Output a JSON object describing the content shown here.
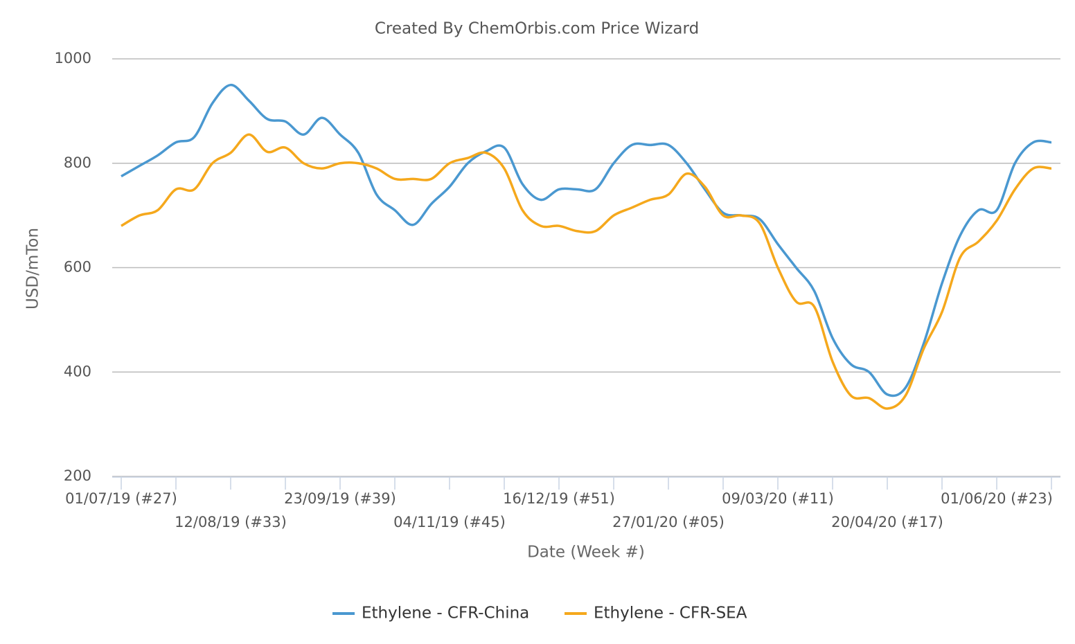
{
  "chart_data": {
    "type": "line",
    "title": "Created By ChemOrbis.com Price Wizard",
    "x_label": "Date (Week #)",
    "y_label": "USD/mTon",
    "categories": [
      "01/07/19 (#27)",
      null,
      null,
      null,
      null,
      null,
      "12/08/19 (#33)",
      null,
      null,
      null,
      null,
      null,
      "23/09/19 (#39)",
      null,
      null,
      null,
      null,
      null,
      "04/11/19 (#45)",
      null,
      null,
      null,
      null,
      null,
      "16/12/19 (#51)",
      null,
      null,
      null,
      null,
      null,
      "27/01/20 (#05)",
      null,
      null,
      null,
      null,
      null,
      "09/03/20 (#11)",
      null,
      null,
      null,
      null,
      null,
      "20/04/20 (#17)",
      null,
      null,
      null,
      null,
      null,
      "01/06/20 (#23)",
      null,
      null,
      null
    ],
    "series": [
      {
        "name": "Ethylene - CFR-China",
        "color": "#4a98d0",
        "values": [
          775,
          795,
          815,
          840,
          850,
          915,
          950,
          920,
          885,
          880,
          855,
          887,
          855,
          820,
          740,
          710,
          682,
          722,
          755,
          800,
          823,
          830,
          760,
          730,
          750,
          750,
          750,
          800,
          835,
          835,
          835,
          800,
          750,
          705,
          700,
          693,
          645,
          600,
          555,
          465,
          415,
          400,
          357,
          370,
          455,
          570,
          662,
          710,
          710,
          800,
          840,
          840
        ]
      },
      {
        "name": "Ethylene - CFR-SEA",
        "color": "#f5a81c",
        "values": [
          680,
          700,
          710,
          750,
          750,
          800,
          820,
          855,
          822,
          830,
          800,
          790,
          800,
          800,
          790,
          770,
          770,
          770,
          800,
          810,
          820,
          790,
          710,
          680,
          680,
          670,
          670,
          700,
          715,
          730,
          740,
          780,
          755,
          700,
          700,
          685,
          600,
          535,
          525,
          420,
          355,
          350,
          330,
          355,
          445,
          515,
          620,
          650,
          690,
          750,
          790,
          790
        ]
      }
    ],
    "ylim": [
      200,
      1000
    ],
    "yticks": [
      200,
      400,
      600,
      800,
      1000
    ],
    "grid": true
  }
}
